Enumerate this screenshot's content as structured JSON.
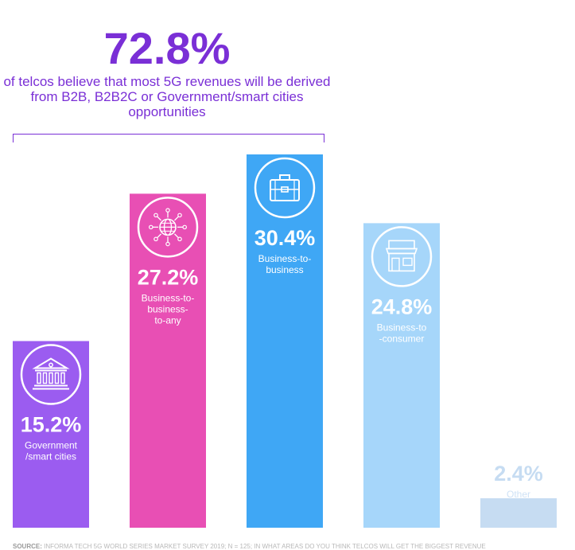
{
  "headline": {
    "value": "72.8%",
    "text": "of telcos believe that most 5G revenues will be derived from B2B, B2B2C or Government/smart cities opportunities"
  },
  "source": {
    "label": "SOURCE:",
    "text": "INFORMA TECH 5G WORLD SERIES MARKET SURVEY 2019; N = 125; IN WHAT AREAS DO YOU THINK TELCOS WILL GET THE BIGGEST REVENUE"
  },
  "chart_data": {
    "type": "bar",
    "categories": [
      "Government /smart cities",
      "Business-to-business-to-any",
      "Business-to-business",
      "Business-to -consumer",
      "Other"
    ],
    "values": [
      15.2,
      27.2,
      30.4,
      24.8,
      2.4
    ],
    "value_labels": [
      "15.2%",
      "27.2%",
      "30.4%",
      "24.8%",
      "2.4%"
    ],
    "label_lines": [
      [
        "Government",
        "/smart cities"
      ],
      [
        "Business-to-",
        "business-",
        "to-any"
      ],
      [
        "Business-to-",
        "business"
      ],
      [
        "Business-to",
        "-consumer"
      ],
      [
        "Other"
      ]
    ],
    "colors": [
      "#9b5cf0",
      "#e84fb4",
      "#3fa7f5",
      "#a6d6fa",
      "#c6dcf2"
    ],
    "icons": [
      "government-building-icon",
      "globe-network-icon",
      "briefcase-icon",
      "shop-icon",
      ""
    ],
    "ylim": [
      0,
      30.4
    ]
  }
}
